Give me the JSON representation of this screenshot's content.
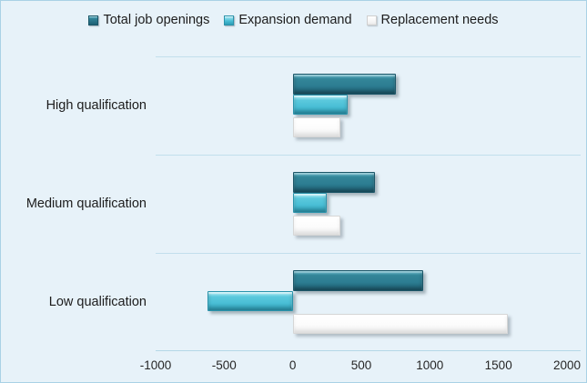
{
  "chart_data": {
    "type": "bar",
    "orientation": "horizontal",
    "title": "",
    "xlabel": "",
    "ylabel": "",
    "categories": [
      "High qualification",
      "Medium qualification",
      "Low qualification"
    ],
    "series": [
      {
        "name": "Total job openings",
        "values": [
          750,
          600,
          950
        ]
      },
      {
        "name": "Expansion demand",
        "values": [
          400,
          250,
          -620
        ]
      },
      {
        "name": "Replacement needs",
        "values": [
          350,
          350,
          1570
        ]
      }
    ],
    "xlim": [
      -1000,
      2000
    ],
    "xticks": [
      -1000,
      -500,
      0,
      500,
      1000,
      1500,
      2000
    ],
    "grid": "horizontal-category-separators",
    "legend_position": "top"
  },
  "colors": {
    "background": "#e7f2f9",
    "frame_border": "#a9d2e6",
    "gridline": "#c2dfec",
    "axis_line": "#b4d7e7",
    "series_total": "#2d7d92",
    "series_expansion": "#49bed5",
    "series_replacement": "#ffffff",
    "text": "#1c1c1c"
  }
}
